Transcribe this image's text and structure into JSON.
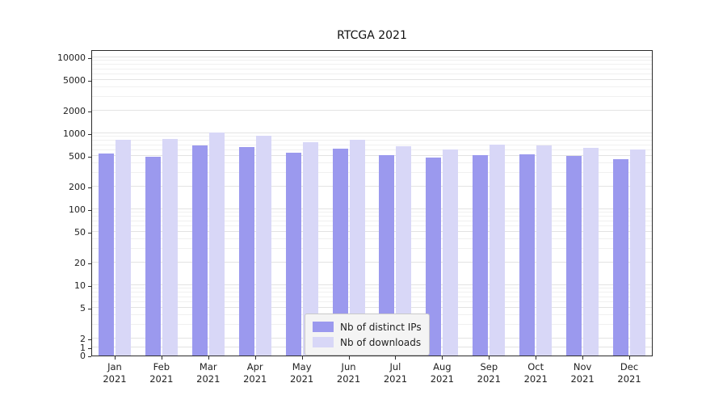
{
  "title": "RTCGA 2021",
  "chart_data": {
    "type": "bar",
    "title": "RTCGA 2021",
    "categories": [
      "Jan",
      "Feb",
      "Mar",
      "Apr",
      "May",
      "Jun",
      "Jul",
      "Aug",
      "Sep",
      "Oct",
      "Nov",
      "Dec"
    ],
    "year_label": "2021",
    "series": [
      {
        "name": "Nb of distinct IPs",
        "color": "#9b99ee",
        "values": [
          540,
          490,
          690,
          660,
          560,
          630,
          520,
          480,
          515,
          530,
          500,
          460
        ]
      },
      {
        "name": "Nb of downloads",
        "color": "#d8d7f7",
        "values": [
          820,
          850,
          1020,
          930,
          770,
          830,
          680,
          620,
          705,
          690,
          640,
          615
        ]
      }
    ],
    "yscale": "symlog",
    "yticks": [
      0,
      1,
      2,
      5,
      10,
      20,
      50,
      100,
      200,
      500,
      1000,
      2000,
      5000,
      10000
    ],
    "ylim": [
      0,
      12800
    ],
    "xlabel": "",
    "ylabel": "",
    "grid": true,
    "legend_position": "lower center"
  }
}
